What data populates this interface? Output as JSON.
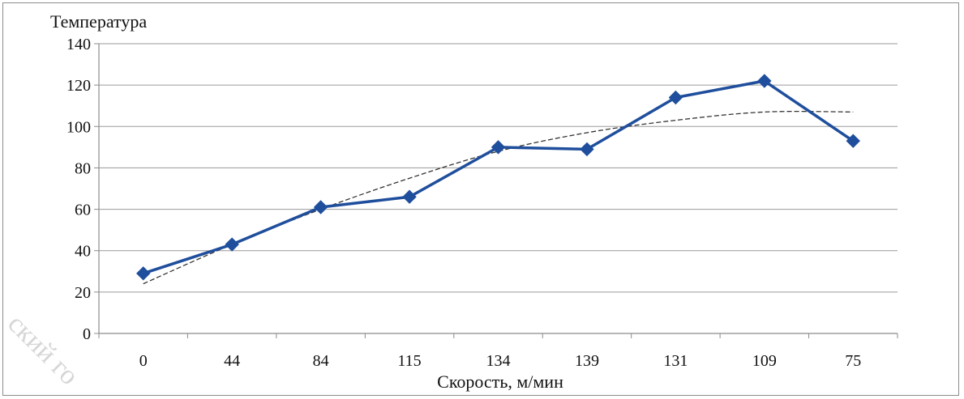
{
  "chart_data": {
    "type": "line",
    "ylabel": "Температура",
    "xlabel": "Скорость, м/мин",
    "categories": [
      "0",
      "44",
      "84",
      "115",
      "134",
      "139",
      "131",
      "109",
      "75"
    ],
    "series": [
      {
        "values": [
          29,
          43,
          61,
          66,
          90,
          89,
          114,
          122,
          93
        ],
        "color": "#1f4e9c",
        "marker": "diamond"
      }
    ],
    "trendline": {
      "style": "dashed",
      "color": "#333333",
      "values": [
        24,
        43,
        60,
        75,
        88,
        97,
        103,
        107,
        107
      ]
    },
    "ylim": [
      0,
      140
    ],
    "yticks": [
      0,
      20,
      40,
      60,
      80,
      100,
      120,
      140
    ],
    "grid": "horizontal",
    "legend": "none"
  },
  "watermark": {
    "text": "ский го"
  }
}
